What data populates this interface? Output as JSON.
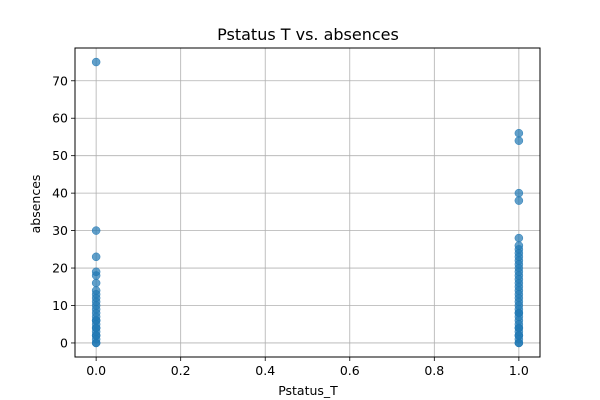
{
  "chart_data": {
    "type": "scatter",
    "title": "Pstatus T vs. absences",
    "xlabel": "Pstatus_T",
    "ylabel": "absences",
    "xlim": [
      -0.05,
      1.05
    ],
    "ylim": [
      -3.75,
      78.75
    ],
    "xticks": [
      0.0,
      0.2,
      0.4,
      0.6,
      0.8,
      1.0
    ],
    "xtick_labels": [
      "0.0",
      "0.2",
      "0.4",
      "0.6",
      "0.8",
      "1.0"
    ],
    "yticks": [
      0,
      10,
      20,
      30,
      40,
      50,
      60,
      70
    ],
    "ytick_labels": [
      "0",
      "10",
      "20",
      "30",
      "40",
      "50",
      "60",
      "70"
    ],
    "grid": true,
    "legend": "none",
    "marker_color": "#1f77b4",
    "series": [
      {
        "x": [
          0,
          0,
          0,
          0,
          0,
          0,
          0,
          0,
          0,
          0,
          0,
          0,
          0,
          0,
          0,
          0,
          0,
          0,
          0,
          0,
          0,
          0,
          0,
          0,
          0
        ],
        "y": [
          0,
          1,
          2,
          3,
          4,
          5,
          6,
          7,
          8,
          9,
          10,
          11,
          12,
          13,
          14,
          16,
          18,
          19,
          23,
          30,
          75,
          0,
          2,
          4,
          6
        ]
      },
      {
        "x": [
          1,
          1,
          1,
          1,
          1,
          1,
          1,
          1,
          1,
          1,
          1,
          1,
          1,
          1,
          1,
          1,
          1,
          1,
          1,
          1,
          1,
          1,
          1,
          1,
          1,
          1,
          1,
          1,
          1,
          1,
          1,
          1,
          1,
          1,
          1,
          1
        ],
        "y": [
          0,
          1,
          2,
          3,
          4,
          5,
          6,
          7,
          8,
          9,
          10,
          11,
          12,
          13,
          14,
          15,
          16,
          17,
          18,
          19,
          20,
          21,
          22,
          23,
          24,
          25,
          26,
          28,
          38,
          40,
          54,
          56,
          0,
          2,
          4,
          8
        ]
      }
    ]
  }
}
